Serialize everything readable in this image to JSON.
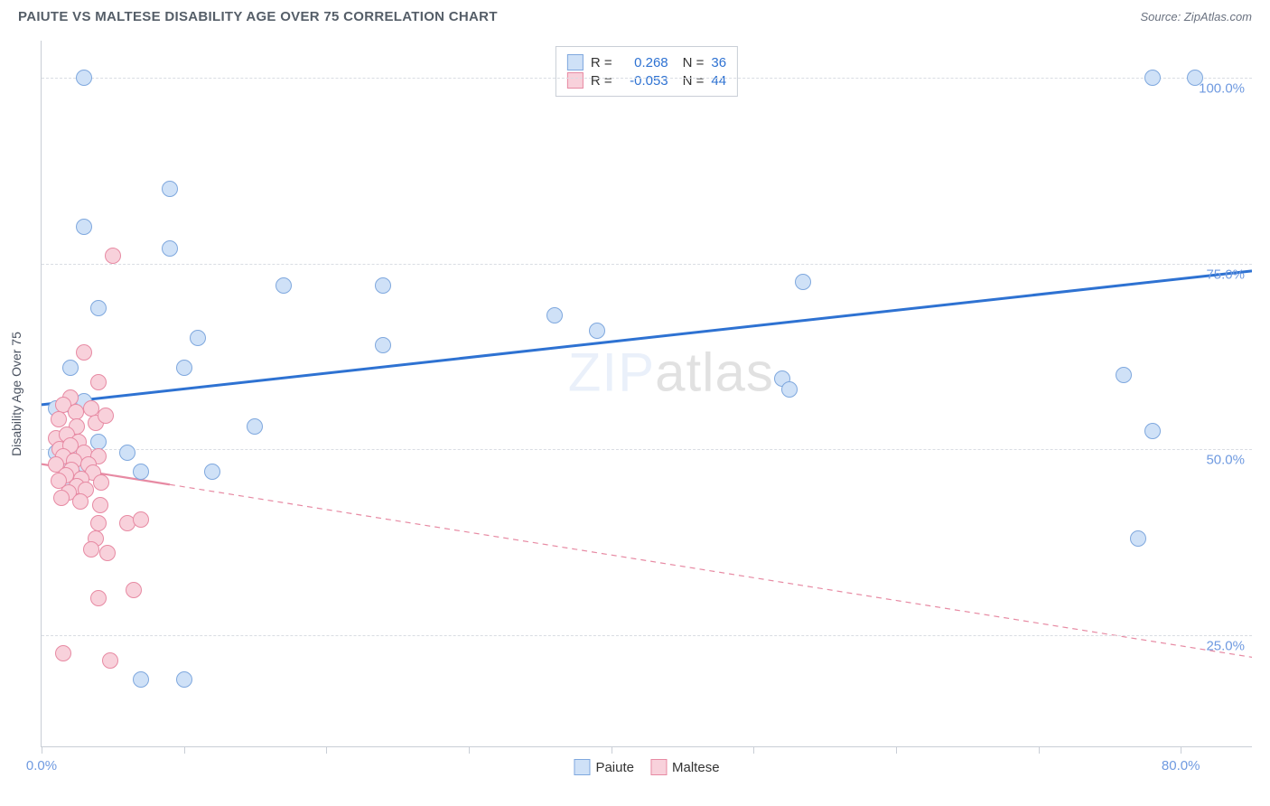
{
  "header": {
    "title": "PAIUTE VS MALTESE DISABILITY AGE OVER 75 CORRELATION CHART",
    "source": "Source: ZipAtlas.com"
  },
  "chart": {
    "type": "scatter",
    "yaxis_title": "Disability Age Over 75",
    "xlim": [
      0,
      85
    ],
    "ylim": [
      10,
      105
    ],
    "xticks": [
      0,
      10,
      20,
      30,
      40,
      50,
      60,
      70,
      80
    ],
    "xtick_labels": {
      "0": "0.0%",
      "80": "80.0%"
    },
    "yticks": [
      25,
      50,
      75,
      100
    ],
    "ytick_labels": [
      "25.0%",
      "50.0%",
      "75.0%",
      "100.0%"
    ],
    "grid_color": "#d9dde3",
    "axis_color": "#c9ced6",
    "background_color": "#ffffff",
    "tick_label_color": "#6f9ae0",
    "marker_radius": 9,
    "marker_border_width": 1.5,
    "series": [
      {
        "name": "Paiute",
        "fill": "#cfe1f7",
        "stroke": "#7fa8de",
        "R": "0.268",
        "N": "36",
        "trend": {
          "x1": 0,
          "y1": 56,
          "x2": 85,
          "y2": 74,
          "stroke": "#2e72d2",
          "width": 3,
          "dash": "none"
        },
        "points": [
          [
            3,
            100
          ],
          [
            78,
            100
          ],
          [
            81,
            100
          ],
          [
            9,
            85
          ],
          [
            3,
            80
          ],
          [
            9,
            77
          ],
          [
            17,
            72
          ],
          [
            24,
            72
          ],
          [
            53.5,
            72.5
          ],
          [
            4,
            69
          ],
          [
            36,
            68
          ],
          [
            39,
            66
          ],
          [
            11,
            65
          ],
          [
            24,
            64
          ],
          [
            10,
            61
          ],
          [
            2,
            61
          ],
          [
            76,
            60
          ],
          [
            52,
            59.5
          ],
          [
            52.5,
            58
          ],
          [
            2,
            56
          ],
          [
            3,
            56.5
          ],
          [
            1,
            55.5
          ],
          [
            15,
            53
          ],
          [
            78,
            52.5
          ],
          [
            4,
            51
          ],
          [
            2,
            50
          ],
          [
            1,
            49.5
          ],
          [
            3,
            48
          ],
          [
            6,
            49.5
          ],
          [
            7,
            47
          ],
          [
            2,
            47.5
          ],
          [
            12,
            47
          ],
          [
            2,
            45
          ],
          [
            77,
            38
          ],
          [
            7,
            19
          ],
          [
            10,
            19
          ]
        ]
      },
      {
        "name": "Maltese",
        "fill": "#f8d1db",
        "stroke": "#e78aa3",
        "R": "-0.053",
        "N": "44",
        "trend": {
          "x1": 0,
          "y1": 48,
          "x2": 85,
          "y2": 22,
          "stroke": "#e78aa3",
          "width": 1.2,
          "dash": "6,5",
          "solid_until_x": 9
        },
        "points": [
          [
            5,
            76
          ],
          [
            3,
            63
          ],
          [
            4,
            59
          ],
          [
            2,
            57
          ],
          [
            1.5,
            56
          ],
          [
            2.4,
            55
          ],
          [
            3.5,
            55.5
          ],
          [
            1.2,
            54
          ],
          [
            2.5,
            53
          ],
          [
            3.8,
            53.5
          ],
          [
            4.5,
            54.5
          ],
          [
            1,
            51.5
          ],
          [
            1.8,
            52
          ],
          [
            2.6,
            51
          ],
          [
            1.3,
            50
          ],
          [
            2,
            50.5
          ],
          [
            3,
            49.5
          ],
          [
            1.5,
            49
          ],
          [
            4,
            49
          ],
          [
            2.3,
            48.4
          ],
          [
            1,
            48
          ],
          [
            3.3,
            48
          ],
          [
            2.1,
            47.2
          ],
          [
            1.7,
            46.5
          ],
          [
            3.6,
            46.8
          ],
          [
            2.8,
            46
          ],
          [
            1.2,
            45.8
          ],
          [
            4.2,
            45.5
          ],
          [
            2.5,
            45
          ],
          [
            1.9,
            44.2
          ],
          [
            3.1,
            44.5
          ],
          [
            1.4,
            43.5
          ],
          [
            2.7,
            43
          ],
          [
            4.1,
            42.5
          ],
          [
            4,
            40
          ],
          [
            6,
            40
          ],
          [
            7,
            40.5
          ],
          [
            3.8,
            38
          ],
          [
            3.5,
            36.5
          ],
          [
            4.6,
            36
          ],
          [
            6.5,
            31
          ],
          [
            4,
            30
          ],
          [
            4.8,
            21.5
          ],
          [
            1.5,
            22.5
          ]
        ]
      }
    ],
    "legend_bottom": [
      "Paiute",
      "Maltese"
    ],
    "watermark": {
      "prefix": "ZIP",
      "suffix": "atlas"
    }
  }
}
